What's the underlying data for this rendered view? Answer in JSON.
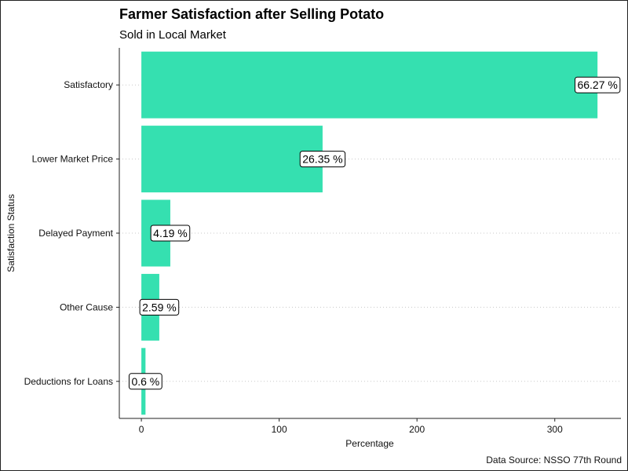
{
  "chart_data": {
    "type": "bar",
    "orientation": "horizontal",
    "title": "Farmer Satisfaction after Selling Potato",
    "subtitle": "Sold in Local Market",
    "xlabel": "Percentage",
    "ylabel": "Satisfaction Status",
    "caption": "Data Source: NSSO 77th Round",
    "categories": [
      "Satisfactory",
      "Lower Market Price",
      "Delayed Payment",
      "Other Cause",
      "Deductions for Loans"
    ],
    "values": [
      331,
      131.5,
      21,
      13,
      3
    ],
    "data_labels": [
      "66.27 %",
      "26.35 %",
      "4.19 %",
      "2.59 %",
      "0.6 %"
    ],
    "xlim": [
      -16,
      348
    ],
    "xticks": [
      0,
      100,
      200,
      300
    ],
    "grid": "horizontal dotted",
    "bar_color": "#35e0b0"
  }
}
